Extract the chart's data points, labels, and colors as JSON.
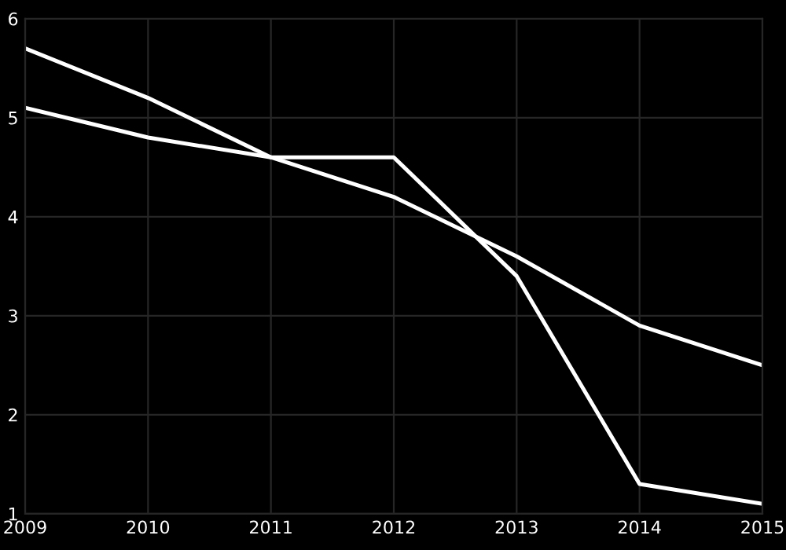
{
  "chart_data": {
    "type": "line",
    "x": [
      2009,
      2010,
      2011,
      2012,
      2013,
      2014,
      2015
    ],
    "series": [
      {
        "color": "#ffffff",
        "values": [
          5.7,
          5.2,
          4.6,
          4.6,
          3.4,
          1.3,
          1.1
        ]
      },
      {
        "color": "#ffffff",
        "values": [
          5.1,
          4.8,
          4.6,
          4.2,
          3.6,
          2.9,
          2.5
        ]
      }
    ],
    "xlim": [
      2009,
      2015
    ],
    "xticks": [
      2009,
      2010,
      2011,
      2012,
      2013,
      2014,
      2015
    ],
    "ylim": [
      1,
      6
    ],
    "yticks": [
      1,
      2,
      3,
      4,
      5,
      6
    ],
    "grid": true,
    "marker": "none",
    "line_style": "solid"
  }
}
